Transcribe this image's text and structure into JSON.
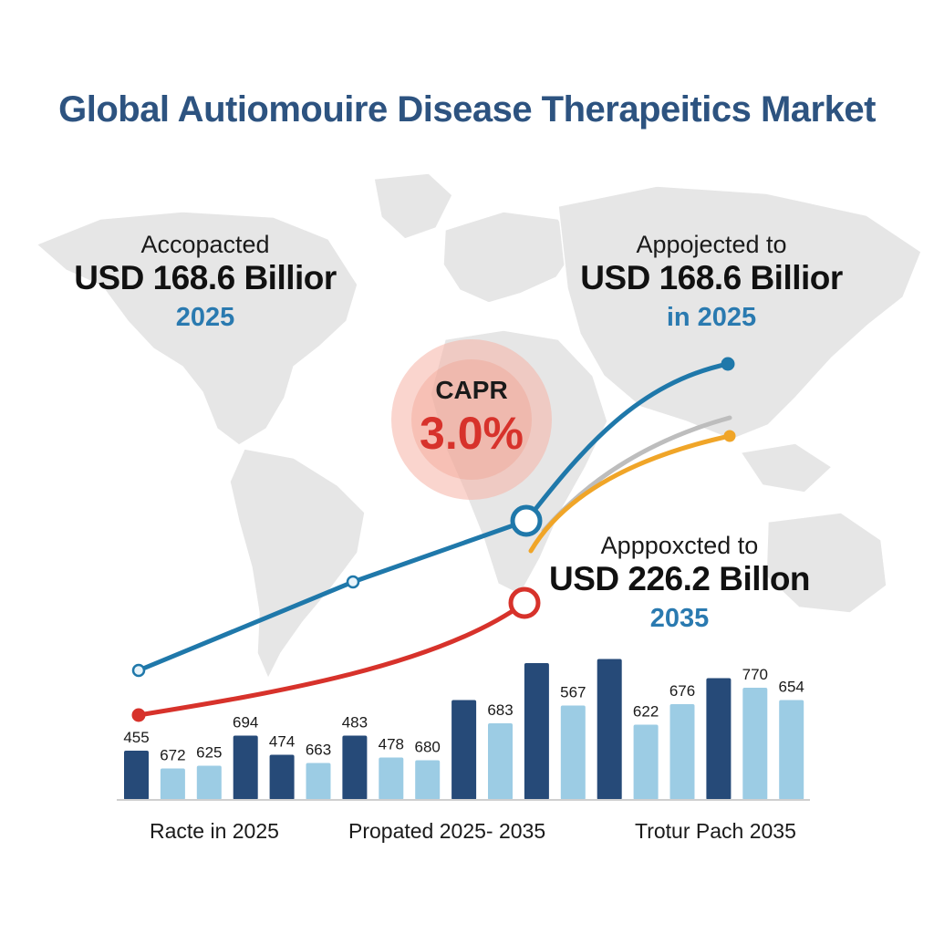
{
  "title": "Global Autiomouire Disease Therapeitics Market",
  "callouts": {
    "left": {
      "line1": "Accopacted",
      "value": "USD 168.6 Billior",
      "year": "2025"
    },
    "right": {
      "line1": "Appojected to",
      "value": "USD 168.6 Billior",
      "year": "in 2025"
    },
    "lower": {
      "line1": "Apppoxcted to",
      "value": "USD 226.2 Billon",
      "year": "2035"
    }
  },
  "cagr": {
    "label": "CAPR",
    "value": "3.0%"
  },
  "colors": {
    "title": "#2d5380",
    "dark_bar": "#264a78",
    "light_bar": "#9ccce4",
    "blue_line": "#1f78aa",
    "red_line": "#d7322b",
    "orange_line": "#f0a528",
    "gray_line": "#bdbdbd",
    "map": "#e6e6e6"
  },
  "chart_data": {
    "type": "bar",
    "values": [
      455,
      672,
      625,
      694,
      474,
      663,
      483,
      478,
      680,
      null,
      683,
      null,
      567,
      null,
      622,
      676,
      null,
      770,
      654
    ],
    "shades": [
      "dark",
      "light",
      "light",
      "dark",
      "dark",
      "light",
      "dark",
      "light",
      "light",
      "dark",
      "light",
      "dark",
      "light",
      "dark",
      "light",
      "light",
      "dark",
      "light",
      "light"
    ],
    "bar_heights_relative": [
      0.36,
      0.23,
      0.25,
      0.47,
      0.33,
      0.27,
      0.47,
      0.31,
      0.29,
      0.73,
      0.56,
      1.0,
      0.69,
      1.03,
      0.55,
      0.7,
      0.89,
      0.82,
      0.73
    ],
    "axis_labels": [
      "Racte in 2025",
      "Propated 2025- 2035",
      "Trotur Pach 2035"
    ],
    "series": [
      {
        "color": "blue",
        "points": [
          [
            0,
            0.0
          ],
          [
            1,
            0.34
          ],
          [
            2,
            0.63
          ],
          [
            3,
            1.0
          ]
        ]
      },
      {
        "color": "red",
        "points": [
          [
            0,
            0.0
          ],
          [
            1,
            0.22
          ],
          [
            2,
            0.55
          ]
        ]
      },
      {
        "color": "gray",
        "points": [
          [
            0,
            0.0
          ],
          [
            1,
            1.0
          ]
        ]
      },
      {
        "color": "orange",
        "points": [
          [
            0,
            0.0
          ],
          [
            1,
            1.0
          ]
        ]
      }
    ],
    "grid": false,
    "legend": "none"
  }
}
